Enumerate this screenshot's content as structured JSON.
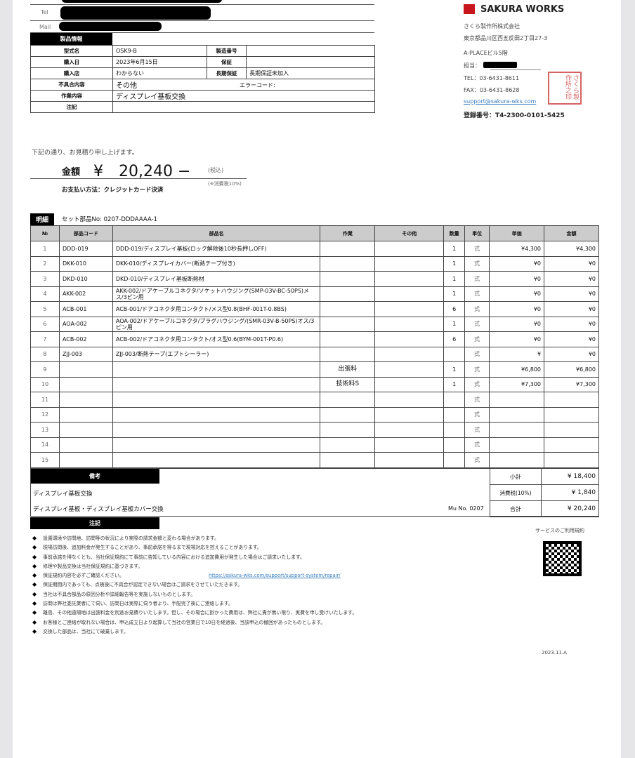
{
  "customer": {
    "tel_label": "Tel",
    "mail_label": "Mail"
  },
  "product_info": {
    "header": "製品情報",
    "model_label": "型式名",
    "model": "OSK9-B",
    "serial_label": "製造番号",
    "serial": "",
    "purchase_date_label": "購入日",
    "purchase_date": "2023年6月15日",
    "warranty_label": "保証",
    "warranty": "",
    "store_label": "購入店",
    "store": "わからない",
    "ext_warranty_label": "長期保証",
    "ext_warranty": "長期保証未加入",
    "defect_label": "不具合内容",
    "defect": "その他",
    "error_code_label": "エラーコード:",
    "work_label": "作業内容",
    "work": "ディスプレイ基板交換",
    "note_label": "注記",
    "note": ""
  },
  "company": {
    "logo": "SAKURA WORKS",
    "brand_color": "#c8161d",
    "name": "さくら製作所株式会社",
    "address": "東京都品川区西五反田2丁目27-3",
    "building": "A-PLACEビル5階",
    "staff_label": "担当：",
    "tel": "TEL：03-6431-8611",
    "fax": "FAX：03-6431-8628",
    "email": "support@sakura-wks.com",
    "registration": "登録番号：T4-2300-0101-5425",
    "stamp": "さくら製作所之印"
  },
  "estimate": {
    "intro": "下記の通り、お見積り申し上げます。",
    "amount_label": "金額",
    "amount": "¥　20,240 −",
    "tax_incl": "(税込)",
    "tax_note": "(※消費税10%)",
    "payment": "お支払い方法：クレジットカード決済"
  },
  "details": {
    "header": "明細",
    "set_no": "セット部品No: 0207-DDDAAAA-1",
    "columns": [
      "№",
      "部品コード",
      "部品名",
      "作業",
      "その他",
      "数量",
      "単位",
      "単価",
      "金額"
    ],
    "rows": [
      [
        "1",
        "DDD-019",
        "DDD-019/ディスプレイ基板(ロック解除後10秒長押しOFF)",
        "",
        "",
        "1",
        "式",
        "¥4,300",
        "¥4,300"
      ],
      [
        "2",
        "DKK-010",
        "DKK-010/ディスプレイカバー(断熱テープ付き)",
        "",
        "",
        "1",
        "式",
        "¥0",
        "¥0"
      ],
      [
        "3",
        "DKD-010",
        "DKD-010/ディスプレイ基板断熱材",
        "",
        "",
        "1",
        "式",
        "¥0",
        "¥0"
      ],
      [
        "4",
        "AKK-002",
        "AKK-002/ドアケーブルコネクタ/ソケットハウジング(SMP-03V-BC-50PS)メス/3ピン用",
        "",
        "",
        "1",
        "式",
        "¥0",
        "¥0"
      ],
      [
        "5",
        "ACB-001",
        "ACB-001/ドアコネクタ用コンタクト/メス型0.8(BHF-001T-0.8BS)",
        "",
        "",
        "6",
        "式",
        "¥0",
        "¥0"
      ],
      [
        "6",
        "AOA-002",
        "AOA-002/ドアケーブルコネクタ/プラグハウジング/(SMR-03V-B-50PS)オス/3ピン用",
        "",
        "",
        "1",
        "式",
        "¥0",
        "¥0"
      ],
      [
        "7",
        "ACB-002",
        "ACB-002/ドアコネクタ用コンタクト/オス型0.6(BYM-001T-P0.6)",
        "",
        "",
        "6",
        "式",
        "¥0",
        "¥0"
      ],
      [
        "8",
        "ZJJ-003",
        "ZJJ-003/断熱テープ(エプトシーラー)",
        "",
        "",
        "",
        "式",
        "¥",
        "¥0"
      ],
      [
        "9",
        "",
        "",
        "出張料",
        "",
        "1",
        "式",
        "¥6,800",
        "¥6,800"
      ],
      [
        "10",
        "",
        "",
        "技術料S",
        "",
        "1",
        "式",
        "¥7,300",
        "¥7,300"
      ],
      [
        "11",
        "",
        "",
        "",
        "",
        "",
        "式",
        "",
        ""
      ],
      [
        "12",
        "",
        "",
        "",
        "",
        "",
        "式",
        "",
        ""
      ],
      [
        "13",
        "",
        "",
        "",
        "",
        "",
        "式",
        "",
        ""
      ],
      [
        "14",
        "",
        "",
        "",
        "",
        "",
        "式",
        "",
        ""
      ],
      [
        "15",
        "",
        "",
        "",
        "",
        "",
        "式",
        "",
        ""
      ]
    ]
  },
  "remarks": {
    "header": "備考",
    "line1": "ディスプレイ基板交換",
    "line2": "ディスプレイ基板・ディスプレイ基板カバー交換",
    "mu_no": "Mu No. 0207",
    "subtotal_label": "小計",
    "subtotal": "¥  18,400",
    "tax_label": "消費税(10%)",
    "tax": "¥  1,840",
    "total_label": "合計",
    "total": "¥  20,240"
  },
  "notes": {
    "header": "注記",
    "items": [
      "設置環境や訪問地、訪問等の状況により実際の請求金額と変わる場合があります。",
      "現場訪問後、追加料金が発生することがあり、事前承諾を得るまで現場対応を控えることがあります。",
      "事前承諾を得なくとも、当社保証規約にて事前に告知している内容における追加費用が発生した場合はご請求いたします。",
      "修理や製品交換は当社保証規約に基づきます。",
      "保証規約内容を必ずご確認ください。",
      "保証期間内であっても、点検後に不具合が認定できない場合はご請求をさせていただきます。",
      "当社は不具合部品の原因分析や詳細報告等を実施しないものとします。",
      "訪問は弊社委託業者にて伺い、訪問日は実際に伺う者より、手配完了後にご連絡します。",
      "離島、その他遠隔地は出張料金を別途お見積りいたします。但し、その場合に掛かった費用は、弊社に責が無い限り、実費を申し受けいたします。",
      "お客様とご連絡が取れない場合は、申込成立日より起算して当社の営業日で10日を経過後、当該申込の撤回があったものとします。",
      "交換した部品は、当社にて破棄します。"
    ],
    "link": "https://sakura-wks.com/support/support-system/repair/",
    "terms_label": "サービスのご利用規約",
    "version": "2023.11.A"
  }
}
